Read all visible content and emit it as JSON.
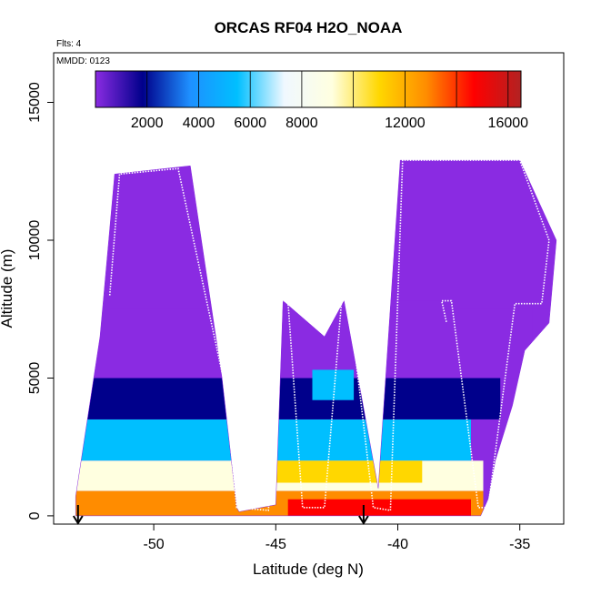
{
  "chart_data": {
    "type": "heatmap",
    "title": "ORCAS RF04 H2O_NOAA",
    "top_left_label": "Flts: 4",
    "inner_label": "MMDD: 0123",
    "xlabel": "Latitude (deg N)",
    "ylabel": "Altitude (m)",
    "xlim": [
      -54.1,
      -33.2
    ],
    "ylim": [
      -300,
      16800
    ],
    "x_ticks": [
      -50,
      -45,
      -40,
      -35
    ],
    "y_ticks": [
      0,
      5000,
      10000,
      15000
    ],
    "colorbar": {
      "vmin": 0,
      "vmax": 16500,
      "tick_values": [
        2000,
        4000,
        6000,
        8000,
        12000,
        16000
      ],
      "divider_values": [
        2000,
        4000,
        6000,
        8000,
        10000,
        12000,
        14000,
        16000
      ],
      "colors": [
        "#8a2be2",
        "#00008b",
        "#1e90ff",
        "#00bfff",
        "#f0f8ff",
        "#ffffe0",
        "#ffd700",
        "#ff8c00",
        "#ff0000",
        "#b22222"
      ]
    },
    "curtain_outline": [
      [
        -53.2,
        700
      ],
      [
        -52.2,
        6500
      ],
      [
        -51.6,
        12400
      ],
      [
        -48.5,
        12700
      ],
      [
        -47.2,
        5000
      ],
      [
        -46.6,
        300
      ],
      [
        -46.5,
        150
      ],
      [
        -45.0,
        400
      ],
      [
        -44.7,
        7800
      ],
      [
        -43.0,
        6500
      ],
      [
        -42.2,
        7800
      ],
      [
        -40.8,
        1000
      ],
      [
        -39.9,
        12900
      ],
      [
        -35.0,
        12900
      ],
      [
        -33.5,
        10000
      ],
      [
        -33.8,
        7000
      ],
      [
        -34.8,
        6000
      ],
      [
        -35.3,
        4000
      ],
      [
        -36.0,
        2000
      ],
      [
        -36.3,
        600
      ],
      [
        -36.6,
        0
      ],
      [
        -46.8,
        0
      ],
      [
        -53.2,
        0
      ]
    ],
    "field_bands": [
      {
        "lo": 0,
        "hi": 900,
        "lat_start": -53.2,
        "lat_end": -36.5,
        "value": 12500
      },
      {
        "lo": 0,
        "hi": 600,
        "lat_start": -44.5,
        "lat_end": -37.0,
        "value": 14800
      },
      {
        "lo": 900,
        "hi": 2000,
        "lat_start": -53.2,
        "lat_end": -36.5,
        "value": 9000
      },
      {
        "lo": 1200,
        "hi": 2000,
        "lat_start": -46.0,
        "lat_end": -39.0,
        "value": 11500
      },
      {
        "lo": 2000,
        "hi": 3500,
        "lat_start": -53.0,
        "lat_end": -37.0,
        "value": 6500
      },
      {
        "lo": 3500,
        "hi": 5000,
        "lat_start": -53.0,
        "lat_end": -35.8,
        "value": 2200
      },
      {
        "lo": 4200,
        "hi": 5300,
        "lat_start": -43.5,
        "lat_end": -41.8,
        "value": 5200
      },
      {
        "lo": 5000,
        "hi": 7500,
        "lat_start": -52.5,
        "lat_end": -34.5,
        "value": 800
      },
      {
        "lo": 6800,
        "hi": 7800,
        "lat_start": -46.5,
        "lat_end": -38.0,
        "value": 1600
      },
      {
        "lo": 7500,
        "hi": 12900,
        "lat_start": -51.8,
        "lat_end": -33.5,
        "value": 300
      }
    ],
    "flight_track": [
      [
        -51.8,
        8000
      ],
      [
        -51.4,
        12400
      ],
      [
        -49.0,
        12600
      ],
      [
        -47.2,
        5200
      ],
      [
        -47.1,
        5000
      ],
      [
        -46.6,
        300
      ],
      [
        -45.3,
        200
      ],
      [
        -44.8,
        7800
      ],
      [
        -44.5,
        7800
      ],
      [
        -43.9,
        300
      ],
      [
        -43.0,
        300
      ],
      [
        -42.3,
        7800
      ],
      [
        -42.0,
        7800
      ],
      [
        -41.0,
        300
      ],
      [
        -40.3,
        200
      ],
      [
        -39.8,
        12900
      ],
      [
        -35.0,
        12900
      ],
      [
        -33.8,
        10000
      ],
      [
        -34.1,
        7700
      ],
      [
        -35.2,
        7700
      ],
      [
        -36.3,
        300
      ],
      [
        -36.7,
        300
      ],
      [
        -37.8,
        7800
      ],
      [
        -38.2,
        7800
      ],
      [
        -38.0,
        7000
      ]
    ],
    "arrows": [
      {
        "x": -53.1,
        "label": ""
      },
      {
        "x": -41.4,
        "label": ""
      }
    ]
  }
}
